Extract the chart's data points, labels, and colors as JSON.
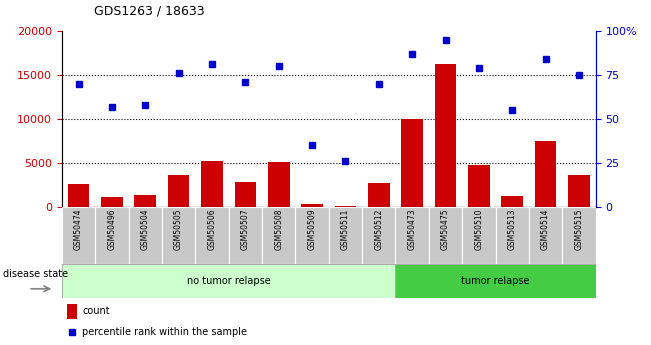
{
  "title": "GDS1263 / 18633",
  "samples": [
    "GSM50474",
    "GSM50496",
    "GSM50504",
    "GSM50505",
    "GSM50506",
    "GSM50507",
    "GSM50508",
    "GSM50509",
    "GSM50511",
    "GSM50512",
    "GSM50473",
    "GSM50475",
    "GSM50510",
    "GSM50513",
    "GSM50514",
    "GSM50515"
  ],
  "counts": [
    2600,
    1100,
    1400,
    3600,
    5200,
    2800,
    5100,
    350,
    150,
    2700,
    10000,
    16200,
    4800,
    1300,
    7500,
    3600
  ],
  "percentile": [
    70,
    57,
    58,
    76,
    81,
    71,
    80,
    35,
    26,
    70,
    87,
    95,
    79,
    55,
    84,
    75
  ],
  "bar_color": "#cc0000",
  "dot_color": "#0000cc",
  "left_ylim": [
    0,
    20000
  ],
  "right_ylim": [
    0,
    100
  ],
  "left_yticks": [
    0,
    5000,
    10000,
    15000,
    20000
  ],
  "right_yticks": [
    0,
    25,
    50,
    75,
    100
  ],
  "right_yticklabels": [
    "0",
    "25",
    "50",
    "75",
    "100%"
  ],
  "no_relapse_count": 10,
  "tumor_relapse_count": 6,
  "group1_label": "no tumor relapse",
  "group2_label": "tumor relapse",
  "disease_state_label": "disease state",
  "legend_count": "count",
  "legend_percentile": "percentile rank within the sample",
  "group1_color": "#ccffcc",
  "group2_color": "#44cc44",
  "tick_bg_color": "#c8c8c8",
  "grid_dotted_vals": [
    5000,
    10000,
    15000
  ]
}
